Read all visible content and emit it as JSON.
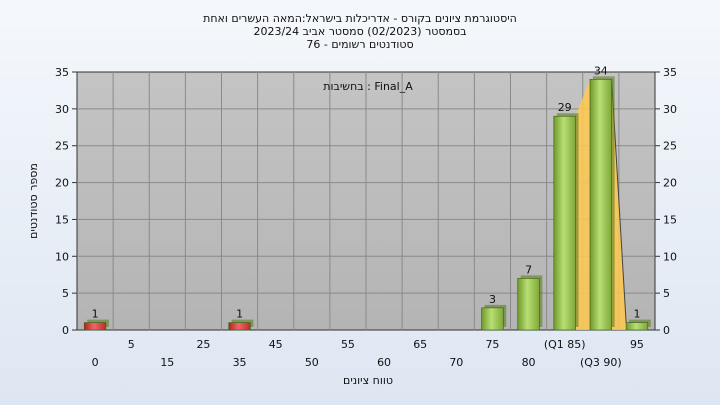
{
  "chart_data": {
    "type": "bar",
    "title_lines": [
      "היסטוגרמת ציונים בקורס - אדריכלות בישראל:המאה העשרים ואחת",
      "בסמסטר  (02/2023)  סמסטר אביב 2023/24",
      "סטודנטים רשומים - 76"
    ],
    "annotation": "בחשיבות : Final_A",
    "xlabel": "טווח ציונים",
    "ylabel": "מספר סטודנטים",
    "ylim": [
      0,
      35
    ],
    "yticks": [
      0,
      5,
      10,
      15,
      20,
      25,
      30,
      35
    ],
    "categories": [
      "0",
      "5",
      "15",
      "25",
      "35",
      "45",
      "50",
      "55",
      "60",
      "65",
      "70",
      "75",
      "80",
      "(Q1 85)",
      "(Q3 90)",
      "95"
    ],
    "values": [
      1,
      0,
      0,
      0,
      1,
      0,
      0,
      0,
      0,
      0,
      0,
      3,
      7,
      29,
      34,
      1
    ],
    "bar_colors": [
      "#d83a3a",
      "",
      "",
      "",
      "#d83a3a",
      "",
      "",
      "",
      "",
      "",
      "",
      "#8fc24a",
      "#8fc24a",
      "#8fc24a",
      "#8fc24a",
      "#8fc24a"
    ],
    "quartile_band_color": "#ffc94d",
    "x_grid": true,
    "y_grid": true
  }
}
